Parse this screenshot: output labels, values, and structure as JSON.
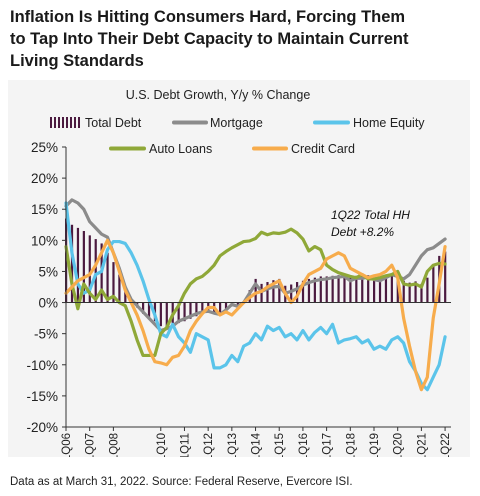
{
  "headline": {
    "line1": "Inflation Is Hitting Consumers Hard, Forcing Them",
    "line2": "to Tap Into Their Debt Capacity to Maintain Current",
    "line3": "Living Standards"
  },
  "source_note": "Data as at March 31, 2022. Source: Federal Reserve, Evercore ISI.",
  "chart_data": {
    "type": "bar",
    "title": "U.S. Debt Growth, Y/y % Change",
    "ylim": [
      -20,
      25
    ],
    "yticks": [
      25,
      20,
      15,
      10,
      5,
      0,
      -5,
      -10,
      -15,
      -20
    ],
    "ytick_labels": [
      "25%",
      "20%",
      "15%",
      "10%",
      "5%",
      "0%",
      "-5%",
      "-10%",
      "-15%",
      "-20%"
    ],
    "x_start": 2006.0,
    "x_end": 2022.25,
    "xticks": [
      2006,
      2007,
      2008,
      2010,
      2011,
      2012,
      2013,
      2014,
      2015,
      2016,
      2017,
      2018,
      2019,
      2020,
      2021,
      2022
    ],
    "xtick_labels": [
      "1Q06",
      "1Q07",
      "1Q08",
      "1Q10",
      "1Q11",
      "1Q12",
      "1Q13",
      "1Q14",
      "1Q15",
      "1Q16",
      "1Q17",
      "1Q18",
      "1Q19",
      "1Q20",
      "1Q21",
      "1Q22"
    ],
    "grid": false,
    "legend_placement": "top",
    "annotation": {
      "line1": "1Q22 Total HH",
      "line2": "Debt +8.2%"
    },
    "total_debt_bars": {
      "name": "Total Debt",
      "color": "#4b1a3f",
      "x": [
        2006.0,
        2006.25,
        2006.5,
        2006.75,
        2007.0,
        2007.25,
        2007.5,
        2007.75,
        2008.0,
        2008.25,
        2008.5,
        2008.75,
        2009.0,
        2009.25,
        2009.5,
        2009.75,
        2010.0,
        2010.25,
        2010.5,
        2010.75,
        2011.0,
        2011.25,
        2011.5,
        2011.75,
        2012.0,
        2012.25,
        2012.5,
        2012.75,
        2013.0,
        2013.25,
        2013.5,
        2013.75,
        2014.0,
        2014.25,
        2014.5,
        2014.75,
        2015.0,
        2015.25,
        2015.5,
        2015.75,
        2016.0,
        2016.25,
        2016.5,
        2016.75,
        2017.0,
        2017.25,
        2017.5,
        2017.75,
        2018.0,
        2018.25,
        2018.5,
        2018.75,
        2019.0,
        2019.25,
        2019.5,
        2019.75,
        2020.0,
        2020.25,
        2020.5,
        2020.75,
        2021.0,
        2021.25,
        2021.5,
        2021.75,
        2022.0
      ],
      "values": [
        13.5,
        12.5,
        12.0,
        11.5,
        10.8,
        10.2,
        9.5,
        8.0,
        6.5,
        4.5,
        2.5,
        0.5,
        -0.8,
        -1.8,
        -2.5,
        -3.0,
        -3.8,
        -4.0,
        -3.7,
        -3.3,
        -3.0,
        -2.6,
        -2.2,
        -1.8,
        -1.5,
        -1.8,
        -2.0,
        -1.3,
        -0.6,
        -0.8,
        0.2,
        2.0,
        3.8,
        3.0,
        3.3,
        3.6,
        3.8,
        2.7,
        2.9,
        3.3,
        3.5,
        3.8,
        4.0,
        4.2,
        4.2,
        4.3,
        4.4,
        4.5,
        4.1,
        4.3,
        4.3,
        4.4,
        4.0,
        3.8,
        4.2,
        4.5,
        4.3,
        3.5,
        3.2,
        3.4,
        3.0,
        4.0,
        6.0,
        7.5,
        8.2
      ]
    },
    "series": [
      {
        "name": "Mortgage",
        "color": "#8b8b8b",
        "x": [
          2006.0,
          2006.25,
          2006.5,
          2006.75,
          2007.0,
          2007.25,
          2007.5,
          2007.75,
          2008.0,
          2008.25,
          2008.5,
          2008.75,
          2009.0,
          2009.25,
          2009.5,
          2009.75,
          2010.0,
          2010.25,
          2010.5,
          2010.75,
          2011.0,
          2011.25,
          2011.5,
          2011.75,
          2012.0,
          2012.25,
          2012.5,
          2012.75,
          2013.0,
          2013.25,
          2013.5,
          2013.75,
          2014.0,
          2014.25,
          2014.5,
          2014.75,
          2015.0,
          2015.25,
          2015.5,
          2015.75,
          2016.0,
          2016.25,
          2016.5,
          2016.75,
          2017.0,
          2017.25,
          2017.5,
          2017.75,
          2018.0,
          2018.25,
          2018.5,
          2018.75,
          2019.0,
          2019.25,
          2019.5,
          2019.75,
          2020.0,
          2020.25,
          2020.5,
          2020.75,
          2021.0,
          2021.25,
          2021.5,
          2021.75,
          2022.0
        ],
        "values": [
          15.5,
          16.5,
          16.0,
          15.0,
          13.0,
          12.0,
          11.0,
          10.5,
          8.0,
          5.5,
          2.5,
          0.5,
          -0.5,
          -1.5,
          -2.5,
          -3.5,
          -4.5,
          -4.2,
          -3.8,
          -3.0,
          -2.6,
          -2.2,
          -1.8,
          -1.5,
          -1.4,
          -1.7,
          -1.9,
          -1.2,
          -0.3,
          -0.6,
          0.0,
          1.5,
          3.0,
          1.8,
          2.2,
          2.5,
          2.6,
          1.5,
          1.8,
          2.2,
          2.8,
          3.2,
          3.5,
          3.7,
          3.8,
          4.0,
          4.1,
          4.2,
          3.5,
          3.9,
          3.9,
          4.1,
          3.7,
          3.5,
          4.0,
          4.5,
          4.2,
          3.8,
          4.5,
          6.0,
          7.5,
          8.5,
          8.8,
          9.5,
          10.2
        ]
      },
      {
        "name": "Home Equity",
        "color": "#5bc4ea",
        "x": [
          2006.0,
          2006.25,
          2006.5,
          2006.75,
          2007.0,
          2007.25,
          2007.5,
          2007.75,
          2008.0,
          2008.25,
          2008.5,
          2008.75,
          2009.0,
          2009.25,
          2009.5,
          2009.75,
          2010.0,
          2010.25,
          2010.5,
          2010.75,
          2011.0,
          2011.25,
          2011.5,
          2011.75,
          2012.0,
          2012.25,
          2012.5,
          2012.75,
          2013.0,
          2013.25,
          2013.5,
          2013.75,
          2014.0,
          2014.25,
          2014.5,
          2014.75,
          2015.0,
          2015.25,
          2015.5,
          2015.75,
          2016.0,
          2016.25,
          2016.5,
          2016.75,
          2017.0,
          2017.25,
          2017.5,
          2017.75,
          2018.0,
          2018.25,
          2018.5,
          2018.75,
          2019.0,
          2019.25,
          2019.5,
          2019.75,
          2020.0,
          2020.25,
          2020.5,
          2020.75,
          2021.0,
          2021.25,
          2021.5,
          2021.75,
          2022.0
        ],
        "values": [
          16.0,
          8.0,
          3.0,
          1.5,
          2.0,
          4.5,
          5.0,
          8.5,
          9.8,
          9.8,
          9.5,
          8.0,
          6.0,
          3.5,
          0.5,
          -2.0,
          -5.0,
          -5.5,
          -3.5,
          -5.5,
          -6.5,
          -8.0,
          -5.0,
          -5.5,
          -6.0,
          -10.5,
          -10.5,
          -10.0,
          -8.5,
          -9.5,
          -7.0,
          -6.5,
          -5.0,
          -6.0,
          -3.8,
          -4.5,
          -4.0,
          -5.5,
          -5.0,
          -6.0,
          -4.5,
          -6.0,
          -4.8,
          -4.0,
          -5.0,
          -3.5,
          -6.5,
          -6.0,
          -5.8,
          -5.5,
          -6.5,
          -6.0,
          -7.5,
          -7.0,
          -7.5,
          -6.0,
          -5.5,
          -6.5,
          -9.5,
          -11.0,
          -13.0,
          -14.0,
          -12.0,
          -10.0,
          -5.5
        ]
      },
      {
        "name": "Auto Loans",
        "color": "#8fa838",
        "x": [
          2006.0,
          2006.25,
          2006.5,
          2006.75,
          2007.0,
          2007.25,
          2007.5,
          2007.75,
          2008.0,
          2008.25,
          2008.5,
          2008.75,
          2009.0,
          2009.25,
          2009.5,
          2009.75,
          2010.0,
          2010.25,
          2010.5,
          2010.75,
          2011.0,
          2011.25,
          2011.5,
          2011.75,
          2012.0,
          2012.25,
          2012.5,
          2012.75,
          2013.0,
          2013.25,
          2013.5,
          2013.75,
          2014.0,
          2014.25,
          2014.5,
          2014.75,
          2015.0,
          2015.25,
          2015.5,
          2015.75,
          2016.0,
          2016.25,
          2016.5,
          2016.75,
          2017.0,
          2017.25,
          2017.5,
          2017.75,
          2018.0,
          2018.25,
          2018.5,
          2018.75,
          2019.0,
          2019.25,
          2019.5,
          2019.75,
          2020.0,
          2020.25,
          2020.5,
          2020.75,
          2021.0,
          2021.25,
          2021.5,
          2021.75,
          2022.0
        ],
        "values": [
          9.0,
          3.0,
          -1.0,
          3.0,
          1.5,
          0.5,
          2.0,
          0.5,
          1.0,
          0.0,
          -0.5,
          -3.0,
          -6.0,
          -8.5,
          -8.5,
          -8.5,
          -5.0,
          -4.0,
          -2.0,
          -0.5,
          1.5,
          3.0,
          3.8,
          4.2,
          5.0,
          6.0,
          7.5,
          8.2,
          8.8,
          9.3,
          9.8,
          9.9,
          10.3,
          11.3,
          10.9,
          11.2,
          11.1,
          11.3,
          11.8,
          11.2,
          10.2,
          8.3,
          9.0,
          8.5,
          6.0,
          5.3,
          4.8,
          4.5,
          4.2,
          4.0,
          4.5,
          3.8,
          3.8,
          4.0,
          4.3,
          4.5,
          5.0,
          3.0,
          2.8,
          3.0,
          2.5,
          5.0,
          6.0,
          6.3,
          6.2
        ]
      },
      {
        "name": "Credit Card",
        "color": "#f7ac4c",
        "x": [
          2006.0,
          2006.25,
          2006.5,
          2006.75,
          2007.0,
          2007.25,
          2007.5,
          2007.75,
          2008.0,
          2008.25,
          2008.5,
          2008.75,
          2009.0,
          2009.25,
          2009.5,
          2009.75,
          2010.0,
          2010.25,
          2010.5,
          2010.75,
          2011.0,
          2011.25,
          2011.5,
          2011.75,
          2012.0,
          2012.25,
          2012.5,
          2012.75,
          2013.0,
          2013.25,
          2013.5,
          2013.75,
          2014.0,
          2014.25,
          2014.5,
          2014.75,
          2015.0,
          2015.25,
          2015.5,
          2015.75,
          2016.0,
          2016.25,
          2016.5,
          2016.75,
          2017.0,
          2017.25,
          2017.5,
          2017.75,
          2018.0,
          2018.25,
          2018.5,
          2018.75,
          2019.0,
          2019.25,
          2019.5,
          2019.75,
          2020.0,
          2020.25,
          2020.5,
          2020.75,
          2021.0,
          2021.25,
          2021.5,
          2021.75,
          2022.0
        ],
        "values": [
          1.5,
          2.5,
          3.5,
          4.0,
          4.5,
          6.0,
          8.0,
          10.0,
          8.0,
          5.0,
          2.0,
          0.0,
          -2.0,
          -4.5,
          -7.5,
          -9.5,
          -9.7,
          -10.0,
          -8.8,
          -8.5,
          -7.0,
          -4.5,
          -3.0,
          -1.8,
          -0.8,
          -0.8,
          -2.0,
          -1.5,
          -2.0,
          -1.0,
          0.0,
          0.8,
          1.5,
          1.8,
          2.5,
          3.0,
          3.5,
          1.5,
          0.0,
          1.0,
          3.0,
          4.5,
          5.0,
          5.5,
          7.0,
          7.5,
          8.0,
          7.5,
          5.5,
          5.0,
          4.5,
          4.0,
          4.3,
          4.5,
          5.0,
          6.0,
          4.0,
          -2.5,
          -7.0,
          -11.0,
          -14.0,
          -12.0,
          -2.5,
          3.0,
          9.0
        ]
      }
    ]
  }
}
